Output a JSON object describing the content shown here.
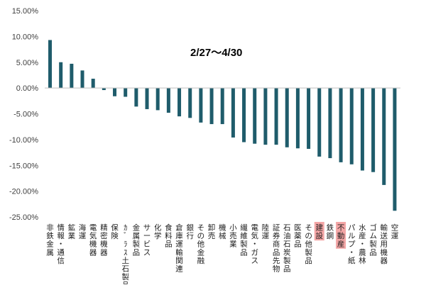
{
  "chart_data": {
    "type": "bar",
    "title": "",
    "annotation": "2/27～4/30",
    "xlabel": "",
    "ylabel": "",
    "ylim": [
      -25,
      15
    ],
    "ytick_labels": [
      "15.00%",
      "10.00%",
      "5.00%",
      "0.00%",
      "-5.00%",
      "-10.00%",
      "-15.00%",
      "-20.00%",
      "-25.00%"
    ],
    "yticks": [
      15,
      10,
      5,
      0,
      -5,
      -10,
      -15,
      -20,
      -25
    ],
    "grid": false,
    "legend": "none",
    "categories": [
      "非鉄金属",
      "情報・通信",
      "鉱業",
      "海運",
      "電気機器",
      "精密機器",
      "保険",
      "ｶﾞﾗｽ土石製品",
      "金属製品",
      "サービス",
      "化学",
      "食料品",
      "倉庫運輸関連",
      "銀行",
      "その他金融",
      "卸売",
      "機械",
      "小売業",
      "繊維製品",
      "電気・ガス",
      "陸運",
      "証券商品先物",
      "石油石炭製品",
      "医薬品",
      "その他製品",
      "建設",
      "鉄鋼",
      "不動産",
      "パルプ・紙",
      "水産・農林",
      "ゴム製品",
      "輸送用機器",
      "空運"
    ],
    "values": [
      9.3,
      5.0,
      4.7,
      3.4,
      1.8,
      -0.4,
      -1.6,
      -1.7,
      -3.6,
      -4.1,
      -4.3,
      -4.8,
      -5.5,
      -5.8,
      -6.7,
      -7.0,
      -7.0,
      -9.6,
      -10.5,
      -10.8,
      -11.0,
      -11.0,
      -11.5,
      -11.7,
      -11.8,
      -13.3,
      -13.6,
      -14.4,
      -14.8,
      -16.0,
      -16.3,
      -18.8,
      -23.8
    ],
    "highlighted": [
      "建設",
      "不動産"
    ],
    "colors": {
      "bar": "#1f5c6b",
      "highlight_bg": "#f4a6a6",
      "axis": "#bfbfbf",
      "text": "#404040"
    }
  }
}
